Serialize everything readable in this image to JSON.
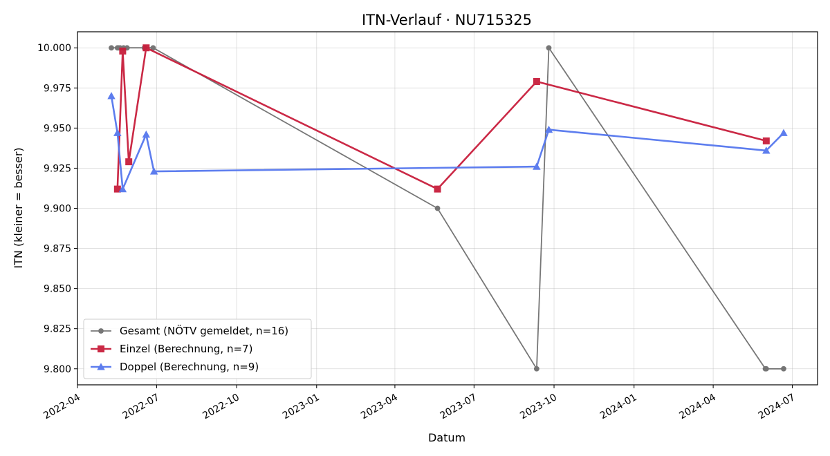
{
  "chart_data": {
    "type": "line",
    "title": "ITN-Verlauf · NU715325",
    "xlabel": "Datum",
    "ylabel": "ITN  (kleiner = besser)",
    "x_type": "date",
    "xlim": [
      "2022-04-01",
      "2024-07-30"
    ],
    "ylim": [
      9.79,
      10.01
    ],
    "x_ticks": [
      "2022-04-01",
      "2022-07-01",
      "2022-10-01",
      "2023-01-01",
      "2023-04-01",
      "2023-07-01",
      "2023-10-01",
      "2024-01-01",
      "2024-04-01",
      "2024-07-01"
    ],
    "x_tick_labels": [
      "2022-04",
      "2022-07",
      "2022-10",
      "2023-01",
      "2023-04",
      "2023-07",
      "2023-10",
      "2024-01",
      "2024-04",
      "2024-07"
    ],
    "y_ticks": [
      9.8,
      9.825,
      9.85,
      9.875,
      9.9,
      9.925,
      9.95,
      9.975,
      10.0
    ],
    "y_tick_labels": [
      "9.800",
      "9.825",
      "9.850",
      "9.875",
      "9.900",
      "9.925",
      "9.950",
      "9.975",
      "10.000"
    ],
    "grid": true,
    "legend_position": "bottom-left",
    "series": [
      {
        "name": "Gesamt (NÖTV gemeldet, n=16)",
        "color": "#555555",
        "marker": "circle",
        "points": [
          {
            "x": "2022-05-10",
            "y": 10.0
          },
          {
            "x": "2022-05-17",
            "y": 10.0
          },
          {
            "x": "2022-05-18",
            "y": 10.0
          },
          {
            "x": "2022-05-20",
            "y": 10.0
          },
          {
            "x": "2022-05-24",
            "y": 10.0
          },
          {
            "x": "2022-05-28",
            "y": 10.0
          },
          {
            "x": "2022-06-17",
            "y": 10.0
          },
          {
            "x": "2022-06-27",
            "y": 10.0
          },
          {
            "x": "2023-05-20",
            "y": 9.9
          },
          {
            "x": "2023-09-11",
            "y": 9.8
          },
          {
            "x": "2023-09-25",
            "y": 10.0
          },
          {
            "x": "2024-05-31",
            "y": 9.8
          },
          {
            "x": "2024-06-01",
            "y": 9.8
          },
          {
            "x": "2024-06-21",
            "y": 9.8
          }
        ]
      },
      {
        "name": "Einzel (Berechnung, n=7)",
        "color": "#c81e3c",
        "marker": "square",
        "points": [
          {
            "x": "2022-05-17",
            "y": 9.912
          },
          {
            "x": "2022-05-23",
            "y": 9.998
          },
          {
            "x": "2022-05-30",
            "y": 9.929
          },
          {
            "x": "2022-06-19",
            "y": 10.0
          },
          {
            "x": "2023-05-20",
            "y": 9.912
          },
          {
            "x": "2023-09-11",
            "y": 9.979
          },
          {
            "x": "2024-06-01",
            "y": 9.942
          }
        ]
      },
      {
        "name": "Doppel (Berechnung, n=9)",
        "color": "#5577ee",
        "marker": "triangle",
        "points": [
          {
            "x": "2022-05-10",
            "y": 9.97
          },
          {
            "x": "2022-05-17",
            "y": 9.947
          },
          {
            "x": "2022-05-23",
            "y": 9.912
          },
          {
            "x": "2022-06-19",
            "y": 9.946
          },
          {
            "x": "2022-06-28",
            "y": 9.923
          },
          {
            "x": "2023-09-11",
            "y": 9.926
          },
          {
            "x": "2023-09-25",
            "y": 9.949
          },
          {
            "x": "2024-06-01",
            "y": 9.936
          },
          {
            "x": "2024-06-21",
            "y": 9.947
          }
        ]
      }
    ]
  }
}
